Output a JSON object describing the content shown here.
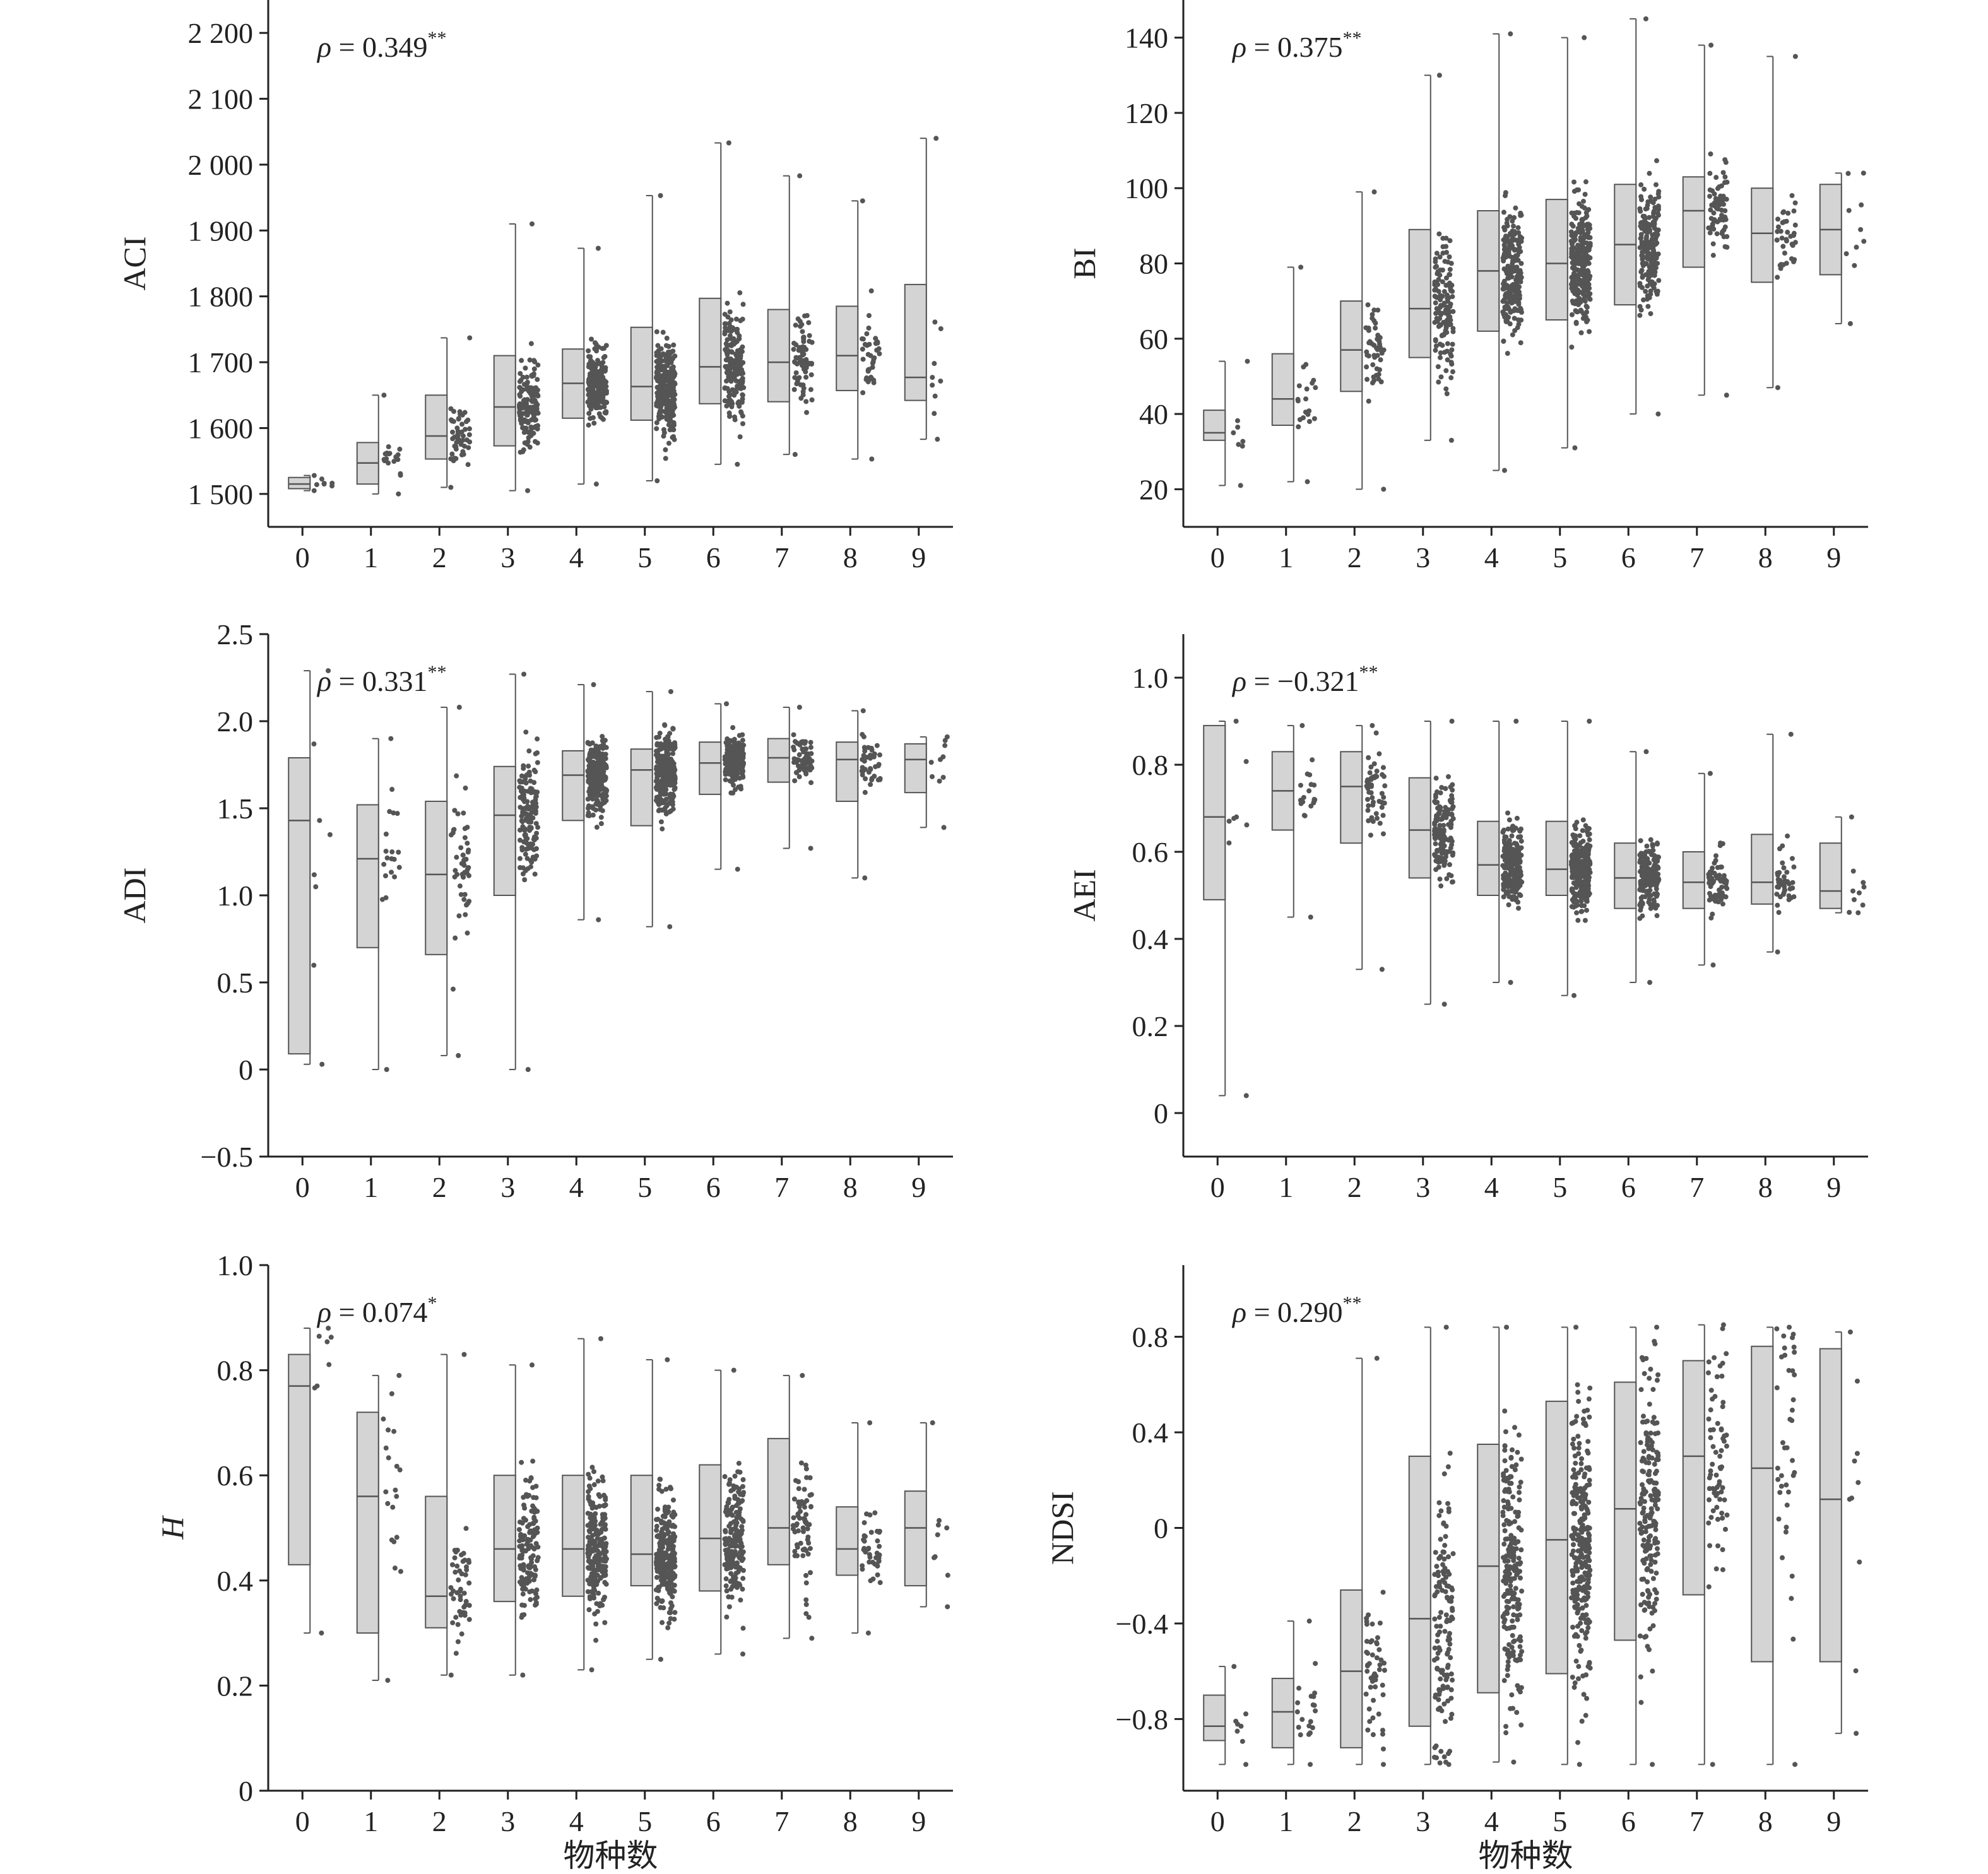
{
  "figure": {
    "colors": {
      "box_fill": "#d4d4d4",
      "box_stroke": "#555555",
      "points": "#555555",
      "axes": "#222222"
    },
    "x_label": "物种数"
  },
  "chart_data": [
    {
      "type": "box",
      "panel": "ACI",
      "ylabel": "ACI",
      "ylabel_italic": false,
      "annotation": {
        "rho": "ρ = 0.349",
        "sig": "**"
      },
      "categories": [
        "0",
        "1",
        "2",
        "3",
        "4",
        "5",
        "6",
        "7",
        "8",
        "9"
      ],
      "ylim": [
        1450,
        2250
      ],
      "yticks": [
        1500,
        1600,
        1700,
        1800,
        1900,
        2000,
        2100,
        2200
      ],
      "ytick_labels": [
        "1 500",
        "1 600",
        "1 700",
        "1 800",
        "1 900",
        "2 000",
        "2 100",
        "2 200"
      ],
      "boxes": [
        {
          "min": 1505,
          "q1": 1508,
          "median": 1515,
          "q3": 1525,
          "max": 1528,
          "n": 8
        },
        {
          "min": 1500,
          "q1": 1515,
          "median": 1547,
          "q3": 1578,
          "max": 1650,
          "n": 20
        },
        {
          "min": 1510,
          "q1": 1553,
          "median": 1588,
          "q3": 1650,
          "max": 1737,
          "n": 50
        },
        {
          "min": 1505,
          "q1": 1573,
          "median": 1632,
          "q3": 1710,
          "max": 1910,
          "n": 140
        },
        {
          "min": 1515,
          "q1": 1615,
          "median": 1668,
          "q3": 1720,
          "max": 1873,
          "n": 220
        },
        {
          "min": 1520,
          "q1": 1612,
          "median": 1663,
          "q3": 1753,
          "max": 1953,
          "n": 260
        },
        {
          "min": 1545,
          "q1": 1637,
          "median": 1693,
          "q3": 1797,
          "max": 2033,
          "n": 190
        },
        {
          "min": 1560,
          "q1": 1640,
          "median": 1700,
          "q3": 1780,
          "max": 1983,
          "n": 70
        },
        {
          "min": 1553,
          "q1": 1657,
          "median": 1710,
          "q3": 1785,
          "max": 1945,
          "n": 40
        },
        {
          "min": 1583,
          "q1": 1642,
          "median": 1677,
          "q3": 1818,
          "max": 2040,
          "n": 10
        }
      ]
    },
    {
      "type": "box",
      "panel": "BI",
      "ylabel": "BI",
      "ylabel_italic": false,
      "annotation": {
        "rho": "ρ = 0.375",
        "sig": "**"
      },
      "categories": [
        "0",
        "1",
        "2",
        "3",
        "4",
        "5",
        "6",
        "7",
        "8",
        "9"
      ],
      "ylim": [
        10,
        150
      ],
      "yticks": [
        20,
        40,
        60,
        80,
        100,
        120,
        140
      ],
      "ytick_labels": [
        "20",
        "40",
        "60",
        "80",
        "100",
        "120",
        "140"
      ],
      "boxes": [
        {
          "min": 21,
          "q1": 33,
          "median": 35,
          "q3": 41,
          "max": 54,
          "n": 8
        },
        {
          "min": 22,
          "q1": 37,
          "median": 44,
          "q3": 56,
          "max": 79,
          "n": 20
        },
        {
          "min": 20,
          "q1": 46,
          "median": 57,
          "q3": 70,
          "max": 99,
          "n": 50
        },
        {
          "min": 33,
          "q1": 55,
          "median": 68,
          "q3": 89,
          "max": 130,
          "n": 140
        },
        {
          "min": 25,
          "q1": 62,
          "median": 78,
          "q3": 94,
          "max": 141,
          "n": 220
        },
        {
          "min": 31,
          "q1": 65,
          "median": 80,
          "q3": 97,
          "max": 140,
          "n": 260
        },
        {
          "min": 40,
          "q1": 69,
          "median": 85,
          "q3": 101,
          "max": 145,
          "n": 190
        },
        {
          "min": 45,
          "q1": 79,
          "median": 94,
          "q3": 103,
          "max": 138,
          "n": 70
        },
        {
          "min": 47,
          "q1": 75,
          "median": 88,
          "q3": 100,
          "max": 135,
          "n": 40
        },
        {
          "min": 64,
          "q1": 77,
          "median": 89,
          "q3": 101,
          "max": 104,
          "n": 10
        }
      ]
    },
    {
      "type": "box",
      "panel": "ADI",
      "ylabel": "ADI",
      "ylabel_italic": false,
      "annotation": {
        "rho": "ρ = 0.331",
        "sig": "**"
      },
      "categories": [
        "0",
        "1",
        "2",
        "3",
        "4",
        "5",
        "6",
        "7",
        "8",
        "9"
      ],
      "ylim": [
        -0.5,
        2.5
      ],
      "yticks": [
        -0.5,
        0,
        0.5,
        1.0,
        1.5,
        2.0,
        2.5
      ],
      "ytick_labels": [
        "−0.5",
        "0",
        "0.5",
        "1.0",
        "1.5",
        "2.0",
        "2.5"
      ],
      "boxes": [
        {
          "min": 0.03,
          "q1": 0.09,
          "median": 1.43,
          "q3": 1.79,
          "max": 2.29,
          "n": 8
        },
        {
          "min": 0.0,
          "q1": 0.7,
          "median": 1.21,
          "q3": 1.52,
          "max": 1.9,
          "n": 20
        },
        {
          "min": 0.08,
          "q1": 0.66,
          "median": 1.12,
          "q3": 1.54,
          "max": 2.08,
          "n": 50
        },
        {
          "min": 0.0,
          "q1": 1.0,
          "median": 1.46,
          "q3": 1.74,
          "max": 2.27,
          "n": 140
        },
        {
          "min": 0.86,
          "q1": 1.43,
          "median": 1.69,
          "q3": 1.83,
          "max": 2.21,
          "n": 220
        },
        {
          "min": 0.82,
          "q1": 1.4,
          "median": 1.72,
          "q3": 1.84,
          "max": 2.17,
          "n": 260
        },
        {
          "min": 1.15,
          "q1": 1.58,
          "median": 1.76,
          "q3": 1.88,
          "max": 2.1,
          "n": 190
        },
        {
          "min": 1.27,
          "q1": 1.65,
          "median": 1.79,
          "q3": 1.9,
          "max": 2.08,
          "n": 70
        },
        {
          "min": 1.1,
          "q1": 1.54,
          "median": 1.78,
          "q3": 1.88,
          "max": 2.06,
          "n": 40
        },
        {
          "min": 1.39,
          "q1": 1.59,
          "median": 1.78,
          "q3": 1.87,
          "max": 1.91,
          "n": 10
        }
      ]
    },
    {
      "type": "box",
      "panel": "AEI",
      "ylabel": "AEI",
      "ylabel_italic": false,
      "annotation": {
        "rho": "ρ = −0.321",
        "sig": "**"
      },
      "categories": [
        "0",
        "1",
        "2",
        "3",
        "4",
        "5",
        "6",
        "7",
        "8",
        "9"
      ],
      "ylim": [
        -0.1,
        1.1
      ],
      "yticks": [
        0,
        0.2,
        0.4,
        0.6,
        0.8,
        1.0
      ],
      "ytick_labels": [
        "0",
        "0.2",
        "0.4",
        "0.6",
        "0.8",
        "1.0"
      ],
      "boxes": [
        {
          "min": 0.04,
          "q1": 0.49,
          "median": 0.68,
          "q3": 0.89,
          "max": 0.9,
          "n": 8
        },
        {
          "min": 0.45,
          "q1": 0.65,
          "median": 0.74,
          "q3": 0.83,
          "max": 0.89,
          "n": 20
        },
        {
          "min": 0.33,
          "q1": 0.62,
          "median": 0.75,
          "q3": 0.83,
          "max": 0.89,
          "n": 50
        },
        {
          "min": 0.25,
          "q1": 0.54,
          "median": 0.65,
          "q3": 0.77,
          "max": 0.9,
          "n": 140
        },
        {
          "min": 0.3,
          "q1": 0.5,
          "median": 0.57,
          "q3": 0.67,
          "max": 0.9,
          "n": 220
        },
        {
          "min": 0.27,
          "q1": 0.5,
          "median": 0.56,
          "q3": 0.67,
          "max": 0.9,
          "n": 260
        },
        {
          "min": 0.3,
          "q1": 0.47,
          "median": 0.54,
          "q3": 0.62,
          "max": 0.83,
          "n": 190
        },
        {
          "min": 0.34,
          "q1": 0.47,
          "median": 0.53,
          "q3": 0.6,
          "max": 0.78,
          "n": 70
        },
        {
          "min": 0.37,
          "q1": 0.48,
          "median": 0.53,
          "q3": 0.64,
          "max": 0.87,
          "n": 40
        },
        {
          "min": 0.46,
          "q1": 0.47,
          "median": 0.51,
          "q3": 0.62,
          "max": 0.68,
          "n": 10
        }
      ]
    },
    {
      "type": "box",
      "panel": "H",
      "ylabel": "H",
      "ylabel_italic": true,
      "annotation": {
        "rho": "ρ = 0.074",
        "sig": "*"
      },
      "categories": [
        "0",
        "1",
        "2",
        "3",
        "4",
        "5",
        "6",
        "7",
        "8",
        "9"
      ],
      "ylim": [
        0,
        1.0
      ],
      "yticks": [
        0,
        0.2,
        0.4,
        0.6,
        0.8,
        1.0
      ],
      "ytick_labels": [
        "0",
        "0.2",
        "0.4",
        "0.6",
        "0.8",
        "1.0"
      ],
      "boxes": [
        {
          "min": 0.3,
          "q1": 0.43,
          "median": 0.77,
          "q3": 0.83,
          "max": 0.88,
          "n": 8
        },
        {
          "min": 0.21,
          "q1": 0.3,
          "median": 0.56,
          "q3": 0.72,
          "max": 0.79,
          "n": 20
        },
        {
          "min": 0.22,
          "q1": 0.31,
          "median": 0.37,
          "q3": 0.56,
          "max": 0.83,
          "n": 50
        },
        {
          "min": 0.22,
          "q1": 0.36,
          "median": 0.46,
          "q3": 0.6,
          "max": 0.81,
          "n": 140
        },
        {
          "min": 0.23,
          "q1": 0.37,
          "median": 0.46,
          "q3": 0.6,
          "max": 0.86,
          "n": 220
        },
        {
          "min": 0.25,
          "q1": 0.39,
          "median": 0.45,
          "q3": 0.6,
          "max": 0.82,
          "n": 260
        },
        {
          "min": 0.26,
          "q1": 0.38,
          "median": 0.48,
          "q3": 0.62,
          "max": 0.8,
          "n": 190
        },
        {
          "min": 0.29,
          "q1": 0.43,
          "median": 0.5,
          "q3": 0.67,
          "max": 0.79,
          "n": 70
        },
        {
          "min": 0.3,
          "q1": 0.41,
          "median": 0.46,
          "q3": 0.54,
          "max": 0.7,
          "n": 40
        },
        {
          "min": 0.35,
          "q1": 0.39,
          "median": 0.5,
          "q3": 0.57,
          "max": 0.7,
          "n": 10
        }
      ]
    },
    {
      "type": "box",
      "panel": "NDSI",
      "ylabel": "NDSI",
      "ylabel_italic": false,
      "annotation": {
        "rho": "ρ = 0.290",
        "sig": "**"
      },
      "categories": [
        "0",
        "1",
        "2",
        "3",
        "4",
        "5",
        "6",
        "7",
        "8",
        "9"
      ],
      "ylim": [
        -1.1,
        1.1
      ],
      "yticks": [
        -0.8,
        -0.4,
        0,
        0.4,
        0.8
      ],
      "ytick_labels": [
        "−0.8",
        "−0.4",
        "0",
        "0.4",
        "0.8"
      ],
      "boxes": [
        {
          "min": -0.99,
          "q1": -0.89,
          "median": -0.83,
          "q3": -0.7,
          "max": -0.58,
          "n": 8
        },
        {
          "min": -0.99,
          "q1": -0.92,
          "median": -0.77,
          "q3": -0.63,
          "max": -0.39,
          "n": 20
        },
        {
          "min": -0.99,
          "q1": -0.92,
          "median": -0.6,
          "q3": -0.26,
          "max": 0.71,
          "n": 50
        },
        {
          "min": -0.99,
          "q1": -0.83,
          "median": -0.38,
          "q3": 0.3,
          "max": 0.84,
          "n": 140
        },
        {
          "min": -0.98,
          "q1": -0.69,
          "median": -0.16,
          "q3": 0.35,
          "max": 0.84,
          "n": 220
        },
        {
          "min": -0.99,
          "q1": -0.61,
          "median": -0.05,
          "q3": 0.53,
          "max": 0.84,
          "n": 260
        },
        {
          "min": -0.99,
          "q1": -0.47,
          "median": 0.08,
          "q3": 0.61,
          "max": 0.84,
          "n": 190
        },
        {
          "min": -0.99,
          "q1": -0.28,
          "median": 0.3,
          "q3": 0.7,
          "max": 0.85,
          "n": 70
        },
        {
          "min": -0.99,
          "q1": -0.56,
          "median": 0.25,
          "q3": 0.76,
          "max": 0.84,
          "n": 40
        },
        {
          "min": -0.86,
          "q1": -0.56,
          "median": 0.12,
          "q3": 0.75,
          "max": 0.82,
          "n": 10
        }
      ]
    }
  ]
}
